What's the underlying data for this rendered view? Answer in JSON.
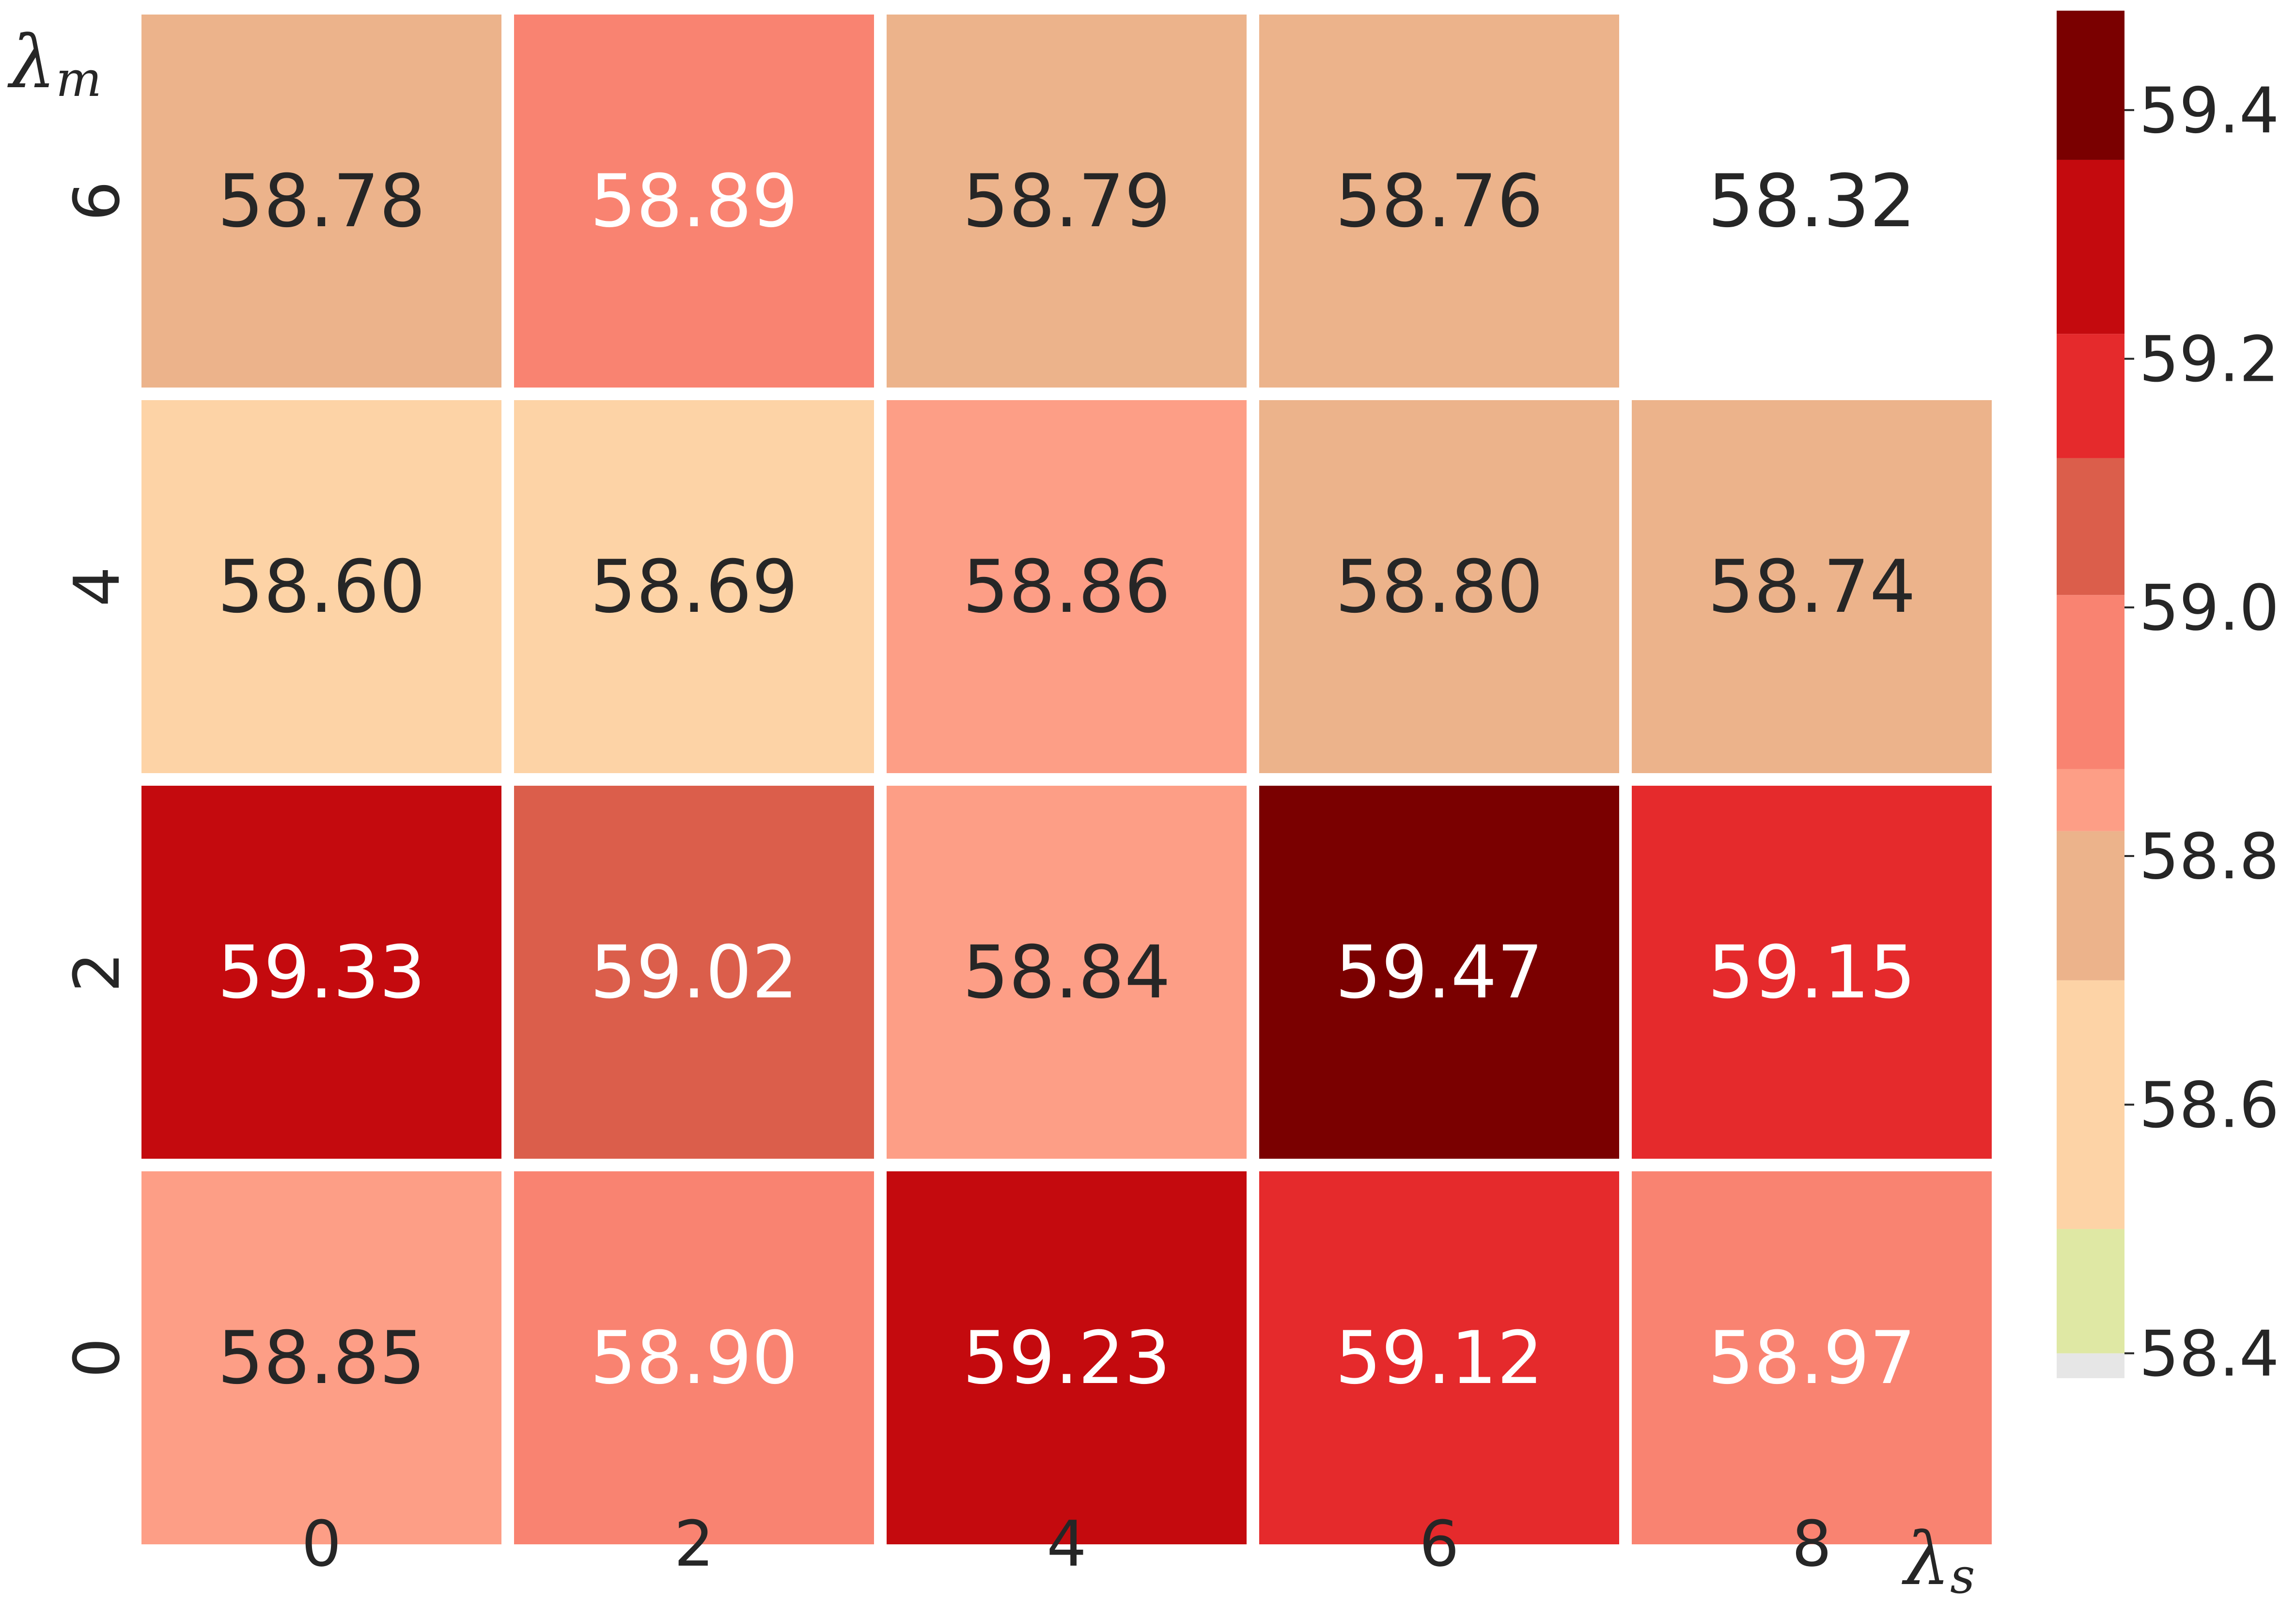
{
  "chart_data": {
    "type": "heatmap",
    "title": "",
    "xlabel": "λs",
    "ylabel": "λm",
    "xlabel_symbol": "λ",
    "xlabel_subscript": "s",
    "ylabel_symbol": "λ",
    "ylabel_subscript": "m",
    "x_categories": [
      "0",
      "2",
      "4",
      "6",
      "8"
    ],
    "y_categories": [
      "6",
      "4",
      "2",
      "0"
    ],
    "values": [
      [
        58.78,
        58.89,
        58.79,
        58.76,
        58.32
      ],
      [
        58.6,
        58.69,
        58.86,
        58.8,
        58.74
      ],
      [
        59.33,
        59.02,
        58.84,
        59.47,
        59.15
      ],
      [
        58.85,
        58.9,
        59.23,
        59.12,
        58.97
      ]
    ],
    "cell_labels": [
      [
        "58.78",
        "58.89",
        "58.79",
        "58.76",
        "58.32"
      ],
      [
        "58.60",
        "58.69",
        "58.86",
        "58.80",
        "58.74"
      ],
      [
        "59.33",
        "59.02",
        "58.84",
        "59.47",
        "59.15"
      ],
      [
        "58.85",
        "58.90",
        "59.23",
        "59.12",
        "58.97"
      ]
    ],
    "colorbar": {
      "range": [
        58.4,
        59.48
      ],
      "ticks": [
        58.4,
        58.6,
        58.8,
        59.0,
        59.2,
        59.4
      ],
      "tick_labels": [
        "58.4",
        "58.6",
        "58.8",
        "59.0",
        "59.2",
        "59.4"
      ],
      "bands": [
        {
          "from": 58.38,
          "to": 58.4,
          "color": "#e6e6e6"
        },
        {
          "from": 58.4,
          "to": 58.5,
          "color": "#dfe8a4"
        },
        {
          "from": 58.5,
          "to": 58.7,
          "color": "#fdd3a6"
        },
        {
          "from": 58.7,
          "to": 58.82,
          "color": "#ecb38b"
        },
        {
          "from": 58.82,
          "to": 58.87,
          "color": "#fd9e86"
        },
        {
          "from": 58.87,
          "to": 59.01,
          "color": "#f98371"
        },
        {
          "from": 59.01,
          "to": 59.12,
          "color": "#db5e4b"
        },
        {
          "from": 59.12,
          "to": 59.22,
          "color": "#e52a2c"
        },
        {
          "from": 59.22,
          "to": 59.36,
          "color": "#c40a0e"
        },
        {
          "from": 59.36,
          "to": 59.48,
          "color": "#7a0000"
        }
      ]
    },
    "text_colors": {
      "dark": "#262626",
      "light": "#ffffff"
    },
    "light_text_threshold": 58.88
  }
}
